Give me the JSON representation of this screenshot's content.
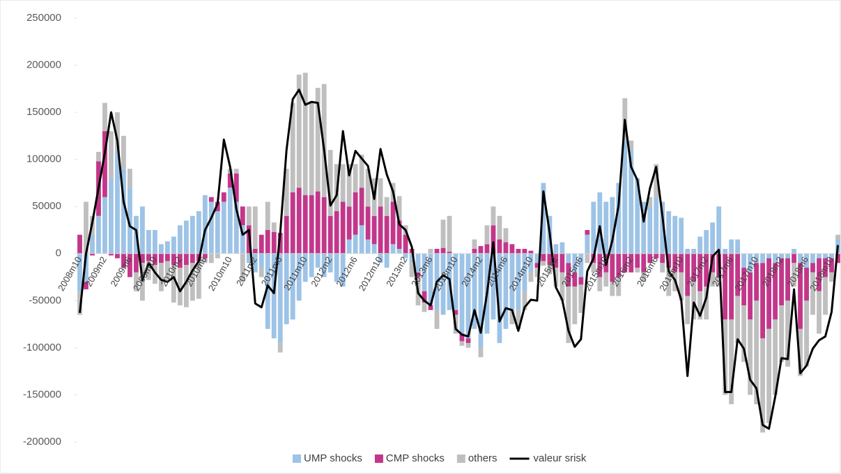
{
  "chart_data": {
    "type": "bar",
    "stacked": true,
    "categories": [
      "2008m10",
      null,
      null,
      null,
      "2009m2",
      null,
      null,
      null,
      "2009m6",
      null,
      null,
      null,
      "2009m10",
      null,
      null,
      null,
      "2010m2",
      null,
      null,
      null,
      "2010m6",
      null,
      null,
      null,
      "2010m10",
      null,
      null,
      null,
      "2011m2",
      null,
      null,
      null,
      "2011m6",
      null,
      null,
      null,
      "2011m10",
      null,
      null,
      null,
      "2012m2",
      null,
      null,
      null,
      "2012m6",
      null,
      null,
      null,
      "2012m10",
      null,
      null,
      null,
      "2013m2",
      null,
      null,
      null,
      "2013m6",
      null,
      null,
      null,
      "2013m10",
      null,
      null,
      null,
      "2014m2",
      null,
      null,
      null,
      "2014m6",
      null,
      null,
      null,
      "2014m10",
      null,
      null,
      null,
      "2015m2",
      null,
      null,
      null,
      "2015m6",
      null,
      null,
      null,
      "2015m10",
      null,
      null,
      null,
      "2016m2",
      null,
      null,
      null,
      "2016m6",
      null,
      null,
      null,
      "2016m10",
      null,
      null,
      null,
      "2017m2",
      null,
      null,
      null,
      "2017m6",
      null,
      null,
      null,
      "2017m10",
      null,
      null,
      null,
      "2018m2",
      null,
      null,
      null,
      "2018m6",
      null,
      null,
      null,
      "2018m10",
      null
    ],
    "series": [
      {
        "name": "UMP shocks",
        "color": "#9dc3e6",
        "values": [
          -40000,
          -30000,
          20000,
          40000,
          60000,
          80000,
          110000,
          90000,
          70000,
          40000,
          50000,
          25000,
          25000,
          10000,
          13000,
          18000,
          30000,
          35000,
          40000,
          45000,
          62000,
          55000,
          45000,
          55000,
          70000,
          55000,
          30000,
          -10000,
          -20000,
          -15000,
          -80000,
          -90000,
          -95000,
          -75000,
          -70000,
          -50000,
          -30000,
          -25000,
          -15000,
          -25000,
          -20000,
          -30000,
          -35000,
          15000,
          20000,
          30000,
          15000,
          10000,
          -10000,
          -15000,
          10000,
          5000,
          -5000,
          -10000,
          -20000,
          -40000,
          -55000,
          -60000,
          -65000,
          -60000,
          -60000,
          -85000,
          -90000,
          -80000,
          -100000,
          -85000,
          -70000,
          -95000,
          -80000,
          -60000,
          -60000,
          -40000,
          -20000,
          -10000,
          75000,
          40000,
          10000,
          12000,
          -10000,
          -20000,
          -25000,
          20000,
          55000,
          65000,
          55000,
          60000,
          75000,
          120000,
          110000,
          80000,
          55000,
          50000,
          60000,
          55000,
          45000,
          40000,
          38000,
          5000,
          5000,
          18000,
          25000,
          33000,
          50000,
          5000,
          15000,
          15000,
          -15000,
          -20000,
          -10000,
          -10000,
          -5000,
          -10000,
          -5000,
          -5000,
          5000,
          -10000,
          -15000,
          -10000,
          -5000,
          -5000,
          -5000,
          15000
        ]
      },
      {
        "name": "CMP shocks",
        "color": "#c2378a",
        "values": [
          20000,
          -8000,
          -2000,
          58000,
          70000,
          -2000,
          -5000,
          -15000,
          -25000,
          -20000,
          -10000,
          -8000,
          -12000,
          -10000,
          -8000,
          -12000,
          -15000,
          -12000,
          -10000,
          -8000,
          -5000,
          5000,
          10000,
          10000,
          15000,
          30000,
          20000,
          30000,
          5000,
          20000,
          25000,
          23000,
          22000,
          40000,
          65000,
          70000,
          62000,
          62000,
          66000,
          60000,
          40000,
          45000,
          55000,
          35000,
          45000,
          40000,
          35000,
          30000,
          50000,
          40000,
          45000,
          30000,
          20000,
          5000,
          -5000,
          -12000,
          -5000,
          5000,
          6000,
          2000,
          -5000,
          -8000,
          -5000,
          5000,
          8000,
          10000,
          30000,
          15000,
          12000,
          10000,
          5000,
          5000,
          3000,
          -5000,
          -8000,
          -12000,
          -15000,
          -20000,
          -25000,
          -15000,
          -8000,
          5000,
          -10000,
          -25000,
          -20000,
          -30000,
          -25000,
          -20000,
          -20000,
          -15000,
          -20000,
          -10000,
          -5000,
          -10000,
          -15000,
          -20000,
          -20000,
          -45000,
          -30000,
          -40000,
          -35000,
          -20000,
          -25000,
          -70000,
          -70000,
          -45000,
          -40000,
          -50000,
          -40000,
          -80000,
          -75000,
          -60000,
          -50000,
          -45000,
          -10000,
          -70000,
          -35000,
          -10000,
          -35000,
          -20000,
          -15000,
          -10000
        ]
      },
      {
        "name": "others",
        "color": "#bfbfbf",
        "values": [
          -25000,
          55000,
          20000,
          10000,
          30000,
          50000,
          40000,
          35000,
          20000,
          -20000,
          -40000,
          -20000,
          -20000,
          -30000,
          -20000,
          -40000,
          -40000,
          -45000,
          -40000,
          -40000,
          -5000,
          -10000,
          -5000,
          0,
          5000,
          5000,
          -30000,
          20000,
          45000,
          -10000,
          30000,
          10000,
          -10000,
          50000,
          95000,
          120000,
          130000,
          100000,
          110000,
          120000,
          70000,
          50000,
          40000,
          45000,
          30000,
          35000,
          40000,
          40000,
          30000,
          20000,
          20000,
          26000,
          10000,
          -15000,
          -30000,
          -10000,
          5000,
          -20000,
          30000,
          38000,
          -20000,
          -5000,
          -5000,
          10000,
          -10000,
          20000,
          20000,
          25000,
          15000,
          -15000,
          -20000,
          -20000,
          -10000,
          -10000,
          -5000,
          -10000,
          -20000,
          -30000,
          -60000,
          -40000,
          -30000,
          -10000,
          -10000,
          -15000,
          -15000,
          -15000,
          -20000,
          45000,
          10000,
          -5000,
          -10000,
          10000,
          35000,
          -10000,
          -30000,
          -20000,
          -30000,
          -30000,
          -40000,
          -30000,
          -35000,
          -15000,
          -10000,
          -80000,
          -90000,
          -50000,
          -60000,
          -80000,
          -110000,
          -100000,
          -100000,
          -80000,
          -60000,
          -70000,
          -25000,
          -50000,
          -70000,
          -45000,
          -45000,
          -40000,
          -10000,
          5000
        ]
      },
      {
        "name": "valeur srisk",
        "color": "#000000",
        "type": "line",
        "values": [
          -63000,
          0,
          33000,
          70000,
          107000,
          150000,
          120000,
          55000,
          29000,
          25000,
          -28000,
          -10000,
          -20000,
          -28000,
          -30000,
          -25000,
          -40000,
          -30000,
          -18000,
          -8000,
          25000,
          38000,
          53000,
          121000,
          92000,
          47000,
          20000,
          25000,
          -53000,
          -57000,
          -34000,
          -42000,
          22000,
          110000,
          164000,
          174000,
          158000,
          161000,
          160000,
          110000,
          51000,
          62000,
          130000,
          83000,
          109000,
          101000,
          93000,
          58000,
          111000,
          84000,
          66000,
          31000,
          25000,
          7000,
          -42000,
          -50000,
          -55000,
          -30000,
          -23000,
          -27000,
          -80000,
          -86000,
          -88000,
          -60000,
          -84000,
          -42000,
          12000,
          -72000,
          -58000,
          -60000,
          -82000,
          -57000,
          -49000,
          -50000,
          66000,
          22000,
          -36000,
          -49000,
          -82000,
          -99000,
          -91000,
          -19000,
          -5000,
          29000,
          -12000,
          14000,
          51000,
          142000,
          92000,
          78000,
          34000,
          69000,
          92000,
          40000,
          -19000,
          -28000,
          -49000,
          -130000,
          -52000,
          -66000,
          -47000,
          -3000,
          4000,
          -147000,
          -147000,
          -91000,
          -101000,
          -134000,
          -143000,
          -182000,
          -186000,
          -152000,
          -111000,
          -112000,
          -38000,
          -127000,
          -119000,
          -101000,
          -92000,
          -88000,
          -62000,
          9000
        ]
      }
    ],
    "ylim": [
      -200000,
      250000
    ],
    "yticks": [
      -200000,
      -150000,
      -100000,
      -50000,
      0,
      50000,
      100000,
      150000,
      200000,
      250000
    ],
    "grid": false,
    "legend": "bottom"
  }
}
